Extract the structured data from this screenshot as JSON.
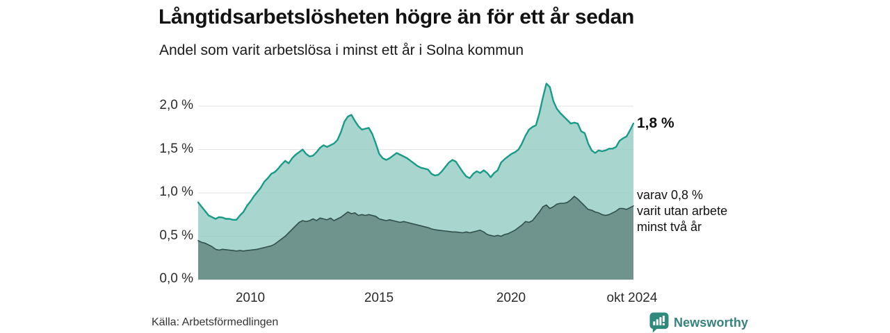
{
  "header": {
    "title": "Långtidsarbetslösheten högre än för ett år sedan",
    "subtitle": "Andel som varit arbetslösa i minst ett år i Solna kommun"
  },
  "chart_data": {
    "type": "area",
    "title": "Långtidsarbetslösheten högre än för ett år sedan",
    "subtitle": "Andel som varit arbetslösa i minst ett år i Solna kommun",
    "ylim": [
      0,
      2.3
    ],
    "grid": "horizontal",
    "grid_color": "#e2e2e2",
    "y_ticks": [
      {
        "label": "2,0 %",
        "value": 2.0
      },
      {
        "label": "1,5 %",
        "value": 1.5
      },
      {
        "label": "1,0 %",
        "value": 1.0
      },
      {
        "label": "0,5 %",
        "value": 0.5
      },
      {
        "label": "0,0 %",
        "value": 0.0
      }
    ],
    "x_ticks": [
      {
        "label": "2010"
      },
      {
        "label": "2015"
      },
      {
        "label": "2020"
      },
      {
        "label": "okt 2024"
      }
    ],
    "series": [
      {
        "name": "arbetslösa i minst ett år",
        "end_label": "1,8 %",
        "end_value": 1.8,
        "line_color": "#1a9a89",
        "fill_color": "#95cdc3",
        "fill_opacity": 0.82,
        "values": [
          0.89,
          0.84,
          0.79,
          0.74,
          0.72,
          0.7,
          0.72,
          0.715,
          0.7,
          0.7,
          0.69,
          0.69,
          0.74,
          0.78,
          0.85,
          0.9,
          0.96,
          1.01,
          1.06,
          1.13,
          1.17,
          1.22,
          1.24,
          1.28,
          1.33,
          1.37,
          1.34,
          1.4,
          1.44,
          1.47,
          1.5,
          1.45,
          1.42,
          1.43,
          1.47,
          1.52,
          1.55,
          1.53,
          1.55,
          1.57,
          1.61,
          1.7,
          1.82,
          1.88,
          1.9,
          1.83,
          1.77,
          1.73,
          1.74,
          1.75,
          1.68,
          1.57,
          1.45,
          1.4,
          1.38,
          1.4,
          1.43,
          1.46,
          1.44,
          1.42,
          1.4,
          1.37,
          1.34,
          1.31,
          1.29,
          1.28,
          1.27,
          1.22,
          1.2,
          1.21,
          1.25,
          1.3,
          1.35,
          1.38,
          1.36,
          1.3,
          1.24,
          1.19,
          1.17,
          1.22,
          1.25,
          1.23,
          1.26,
          1.23,
          1.18,
          1.23,
          1.26,
          1.35,
          1.39,
          1.42,
          1.45,
          1.47,
          1.5,
          1.57,
          1.66,
          1.73,
          1.76,
          1.78,
          1.92,
          2.1,
          2.26,
          2.22,
          2.06,
          1.97,
          1.92,
          1.88,
          1.84,
          1.8,
          1.81,
          1.8,
          1.71,
          1.69,
          1.57,
          1.49,
          1.46,
          1.49,
          1.48,
          1.49,
          1.51,
          1.51,
          1.53,
          1.6,
          1.63,
          1.65,
          1.72,
          1.8
        ]
      },
      {
        "name": "varit utan arbete minst två år",
        "annotation": "varav 0,8 %\nvarit utan arbete\nminst två år",
        "end_value": 0.85,
        "line_color": "#30504a",
        "fill_color": "#6e948d",
        "fill_opacity": 1,
        "values": [
          0.45,
          0.43,
          0.42,
          0.4,
          0.38,
          0.35,
          0.34,
          0.35,
          0.345,
          0.34,
          0.335,
          0.33,
          0.335,
          0.33,
          0.335,
          0.34,
          0.345,
          0.35,
          0.36,
          0.37,
          0.38,
          0.39,
          0.41,
          0.44,
          0.47,
          0.5,
          0.54,
          0.58,
          0.62,
          0.66,
          0.68,
          0.67,
          0.68,
          0.7,
          0.68,
          0.71,
          0.7,
          0.69,
          0.71,
          0.68,
          0.7,
          0.72,
          0.75,
          0.78,
          0.76,
          0.77,
          0.74,
          0.75,
          0.74,
          0.75,
          0.74,
          0.73,
          0.7,
          0.69,
          0.68,
          0.69,
          0.68,
          0.67,
          0.66,
          0.67,
          0.66,
          0.65,
          0.64,
          0.63,
          0.62,
          0.61,
          0.6,
          0.585,
          0.575,
          0.57,
          0.565,
          0.56,
          0.555,
          0.55,
          0.55,
          0.545,
          0.54,
          0.55,
          0.54,
          0.55,
          0.56,
          0.57,
          0.55,
          0.52,
          0.51,
          0.5,
          0.51,
          0.5,
          0.52,
          0.53,
          0.55,
          0.57,
          0.6,
          0.63,
          0.67,
          0.66,
          0.68,
          0.73,
          0.78,
          0.84,
          0.86,
          0.82,
          0.84,
          0.87,
          0.88,
          0.88,
          0.89,
          0.92,
          0.96,
          0.93,
          0.89,
          0.85,
          0.81,
          0.8,
          0.78,
          0.77,
          0.75,
          0.74,
          0.75,
          0.77,
          0.79,
          0.82,
          0.82,
          0.81,
          0.83,
          0.85
        ]
      }
    ],
    "source": "Källa: Arbetsförmedlingen"
  },
  "branding": {
    "logo_text": "Newsworthy",
    "logo_color": "#35837c",
    "icon_color": "#2f8a7d",
    "icon": "bar-chart-speech-bubble"
  }
}
